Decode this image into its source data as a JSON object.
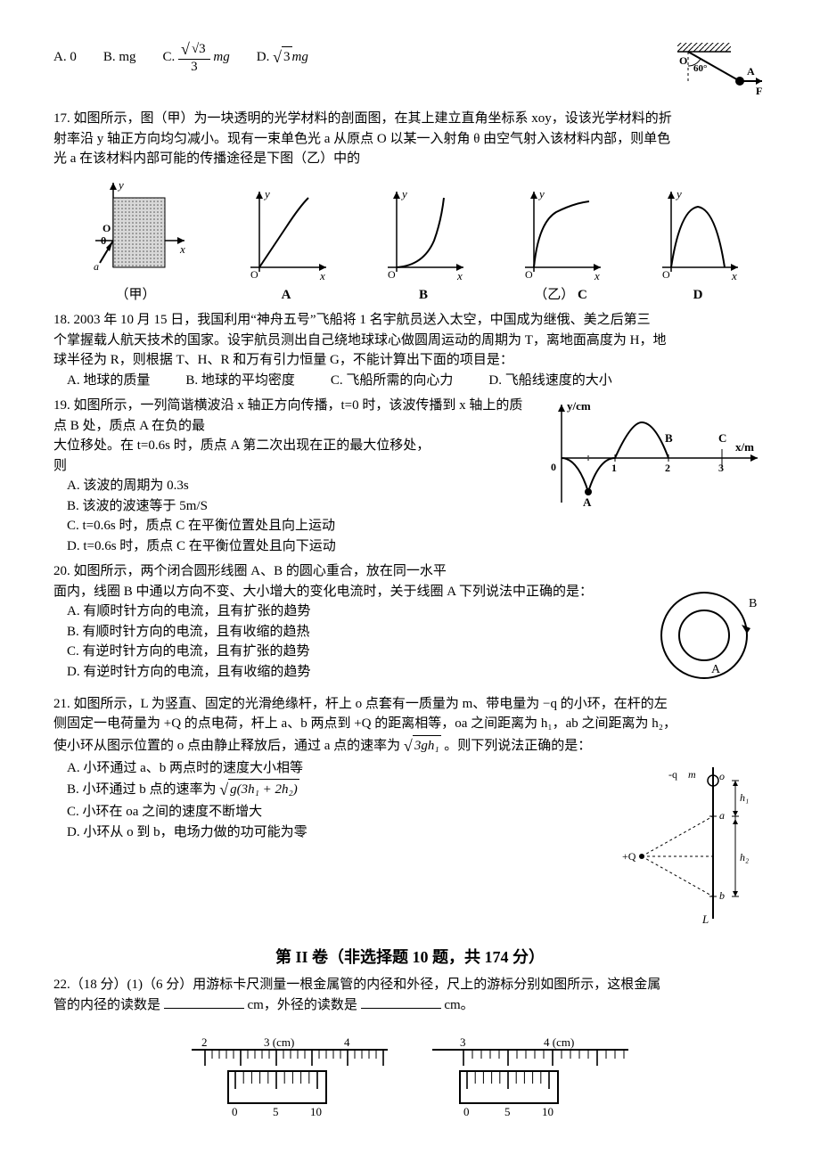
{
  "q16": {
    "optA_label": "A. 0",
    "optB_label": "B. mg",
    "optC_prefix": "C. ",
    "optC_num": "√3",
    "optC_den": "3",
    "optC_suffix": "mg",
    "optD_prefix": "D. ",
    "optD_val": "3",
    "optD_suffix": "mg",
    "fig": {
      "O": "O",
      "A": "A",
      "F": "F",
      "angle": "60°",
      "hatch_color": "#000000",
      "line_color": "#000000",
      "dash": "3,3"
    }
  },
  "q17": {
    "stem_l1": "17. 如图所示，图（甲）为一块透明的光学材料的剖面图，在其上建立直角坐标系 xoy，设该光学材料的折",
    "stem_l2": "射率沿 y 轴正方向均匀减小。现有一束单色光 a 从原点 O 以某一入射角 θ 由空气射入该材料内部，则单色",
    "stem_l3": "光 a 在该材料内部可能的传播途径是下图（乙）中的",
    "caption_left": "（甲）",
    "caption_right": "（乙）",
    "labels": {
      "A": "A",
      "B": "B",
      "C": "C",
      "D": "D",
      "x": "x",
      "y": "y",
      "O": "O",
      "theta": "θ",
      "a": "a"
    },
    "style": {
      "axis_color": "#000000",
      "hatch_fill": "#bdbdbd",
      "hatch_stroke": "#5a5a5a",
      "curve_width": 2
    }
  },
  "q18": {
    "l1": "18. 2003 年 10 月 15 日，我国利用“神舟五号”飞船将 1 名宇航员送入太空，中国成为继俄、美之后第三",
    "l2": "个掌握载人航天技术的国家。设宇航员测出自己绕地球球心做圆周运动的周期为 T，离地面高度为 H，地",
    "l3": "球半径为 R，则根据 T、H、R 和万有引力恒量 G，不能计算出下面的项目是：",
    "optA": "A. 地球的质量",
    "optB": "B. 地球的平均密度",
    "optC": "C. 飞船所需的向心力",
    "optD": "D. 飞船线速度的大小"
  },
  "q19": {
    "l1": "19. 如图所示，一列简谐横波沿 x 轴正方向传播，t=0 时，该波传播到 x 轴上的质点 B 处，质点 A 在负的最",
    "l2": "大位移处。在 t=0.6s 时，质点 A 第二次出现在正的最大位移处，",
    "l3": "则",
    "optA": "A. 该波的周期为 0.3s",
    "optB": "B. 该波的波速等于 5m/S",
    "optC": "C. t=0.6s 时，质点 C 在平衡位置处且向上运动",
    "optD": "D. t=0.6s 时，质点 C 在平衡位置处且向下运动",
    "fig": {
      "yaxis": "y/cm",
      "xaxis": "x/m",
      "A": "A",
      "B": "B",
      "C": "C",
      "t1": "1",
      "t2": "2",
      "t3": "3",
      "zero": "0",
      "curve_color": "#000000",
      "curve_width": 2
    }
  },
  "q20": {
    "l1": "20. 如图所示，两个闭合圆形线圈 A、B 的圆心重合，放在同一水平",
    "l2": "面内，线圈 B 中通以方向不变、大小增大的变化电流时，关于线圈 A 下列说法中正确的是：",
    "optA": "A. 有顺时针方向的电流，且有扩张的趋势",
    "optB": "B. 有顺时针方向的电流，且有收缩的趋热",
    "optC": "C. 有逆时针方向的电流，且有扩张的趋势",
    "optD": "D. 有逆时针方向的电流，且有收缩的趋势",
    "fig": {
      "A": "A",
      "B": "B",
      "stroke": "#000000"
    }
  },
  "q21": {
    "l1_a": "21. 如图所示，L 为竖直、固定的光滑绝缘杆，杆上 o 点套有一质量为 m、带电量为 ",
    "l1_b": "−q 的小环，在杆的左",
    "l2": "侧固定一电荷量为 +Q 的点电荷，杆上 a、b 两点到 +Q 的距离相等，oa 之间距离为 h₁，ab 之间距离为 h₂，",
    "l3_a": "使小环从图示位置的 o 点由静止释放后，通过 a 点的速率为",
    "l3_b": "。则下列说法正确的是：",
    "sqrt_a": "3gh₁",
    "optA": "A. 小环通过 a、b 两点时的速度大小相等",
    "optB_pre": "B. 小环通过 b 点的速率为",
    "optB_sqrt": "g(3h₁ + 2h₂)",
    "optC": "C. 小环在 oa 之间的速度不断增大",
    "optD": "D. 小环从 o 到 b，电场力做的功可能为零",
    "fig": {
      "q": "-q",
      "m": "m",
      "o": "o",
      "a": "a",
      "b": "b",
      "Q": "+Q",
      "L": "L",
      "h1": "h₁",
      "h2": "h₂",
      "stroke": "#000000",
      "dash": "3,3"
    }
  },
  "section2": "第 II 卷（非选择题 10 题，共 174 分）",
  "q22": {
    "l1": "22.（18 分）(1)（6 分）用游标卡尺测量一根金属管的内径和外径，尺上的游标分别如图所示，这根金属",
    "l2_a": "管的内径的读数是",
    "l2_b": "cm，外径的读数是",
    "l2_c": "cm。",
    "left": {
      "n2": "2",
      "n3": "3 (cm)",
      "n4": "4",
      "v0": "0",
      "v5": "5",
      "v10": "10"
    },
    "right": {
      "n3": "3",
      "n4": "4 (cm)",
      "v0": "0",
      "v5": "5",
      "v10": "10"
    },
    "style": {
      "stroke": "#000000"
    }
  }
}
